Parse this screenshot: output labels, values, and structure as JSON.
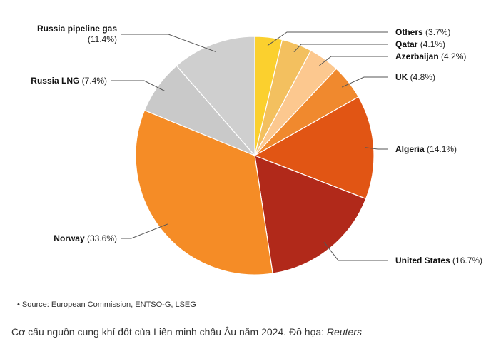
{
  "chart_data": {
    "type": "pie",
    "slices": [
      {
        "label": "Others",
        "percent": "3.7%",
        "value": 3.7,
        "color": "#FBD02E"
      },
      {
        "label": "Qatar",
        "percent": "4.1%",
        "value": 4.1,
        "color": "#F3C05F"
      },
      {
        "label": "Azerbaijan",
        "percent": "4.2%",
        "value": 4.2,
        "color": "#FCC88F"
      },
      {
        "label": "UK",
        "percent": "4.8%",
        "value": 4.8,
        "color": "#F0892E"
      },
      {
        "label": "Algeria",
        "percent": "14.1%",
        "value": 14.1,
        "color": "#E15514"
      },
      {
        "label": "United States",
        "percent": "16.7%",
        "value": 16.7,
        "color": "#B1291A"
      },
      {
        "label": "Norway",
        "percent": "33.6%",
        "value": 33.6,
        "color": "#F58C26"
      },
      {
        "label": "Russia LNG",
        "percent": "7.4%",
        "value": 7.4,
        "color": "#C9C9C9"
      },
      {
        "label": "Russia pipeline gas",
        "percent": "11.4%",
        "value": 11.4,
        "color": "#CFCFCF"
      }
    ]
  },
  "source_note": "• Source: European Commission, ENTSO-G, LSEG",
  "caption": {
    "text": "Cơ cấu nguồn cung khí đốt của Liên minh châu Âu năm 2024. Đồ họa: ",
    "credit": "Reuters"
  }
}
